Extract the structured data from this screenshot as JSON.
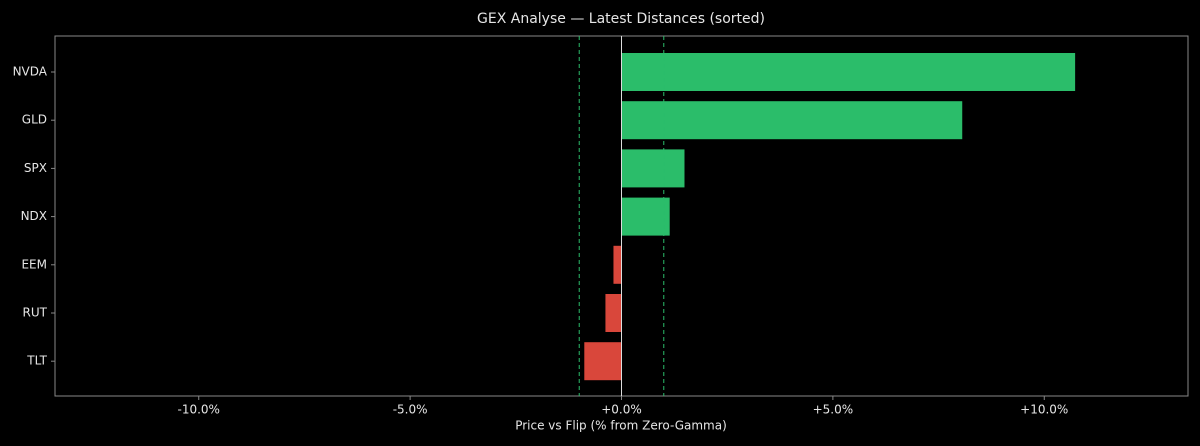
{
  "chart_data": {
    "type": "hbar",
    "title": "GEX Analyse — Latest Distances (sorted)",
    "x_label": "Price vs Flip (% from Zero-Gamma)",
    "categories": [
      "NVDA",
      "GLD",
      "SPX",
      "NDX",
      "EEM",
      "RUT",
      "TLT"
    ],
    "values": [
      10.73,
      8.06,
      1.49,
      1.14,
      -0.19,
      -0.38,
      -0.88
    ],
    "positive_color": "#2bbd6a",
    "negative_color": "#d9473b",
    "xlim": [
      -13.4,
      13.4
    ],
    "xticks": [
      {
        "value": -10,
        "label": "-10.0%"
      },
      {
        "value": -5,
        "label": "-5.0%"
      },
      {
        "value": 0,
        "label": "+0.0%"
      },
      {
        "value": 5,
        "label": "+5.0%"
      },
      {
        "value": 10,
        "label": "+10.0%"
      }
    ],
    "reference_lines": [
      -1,
      1
    ],
    "reference_color": "#2bbd6a",
    "zero_line": 0
  }
}
